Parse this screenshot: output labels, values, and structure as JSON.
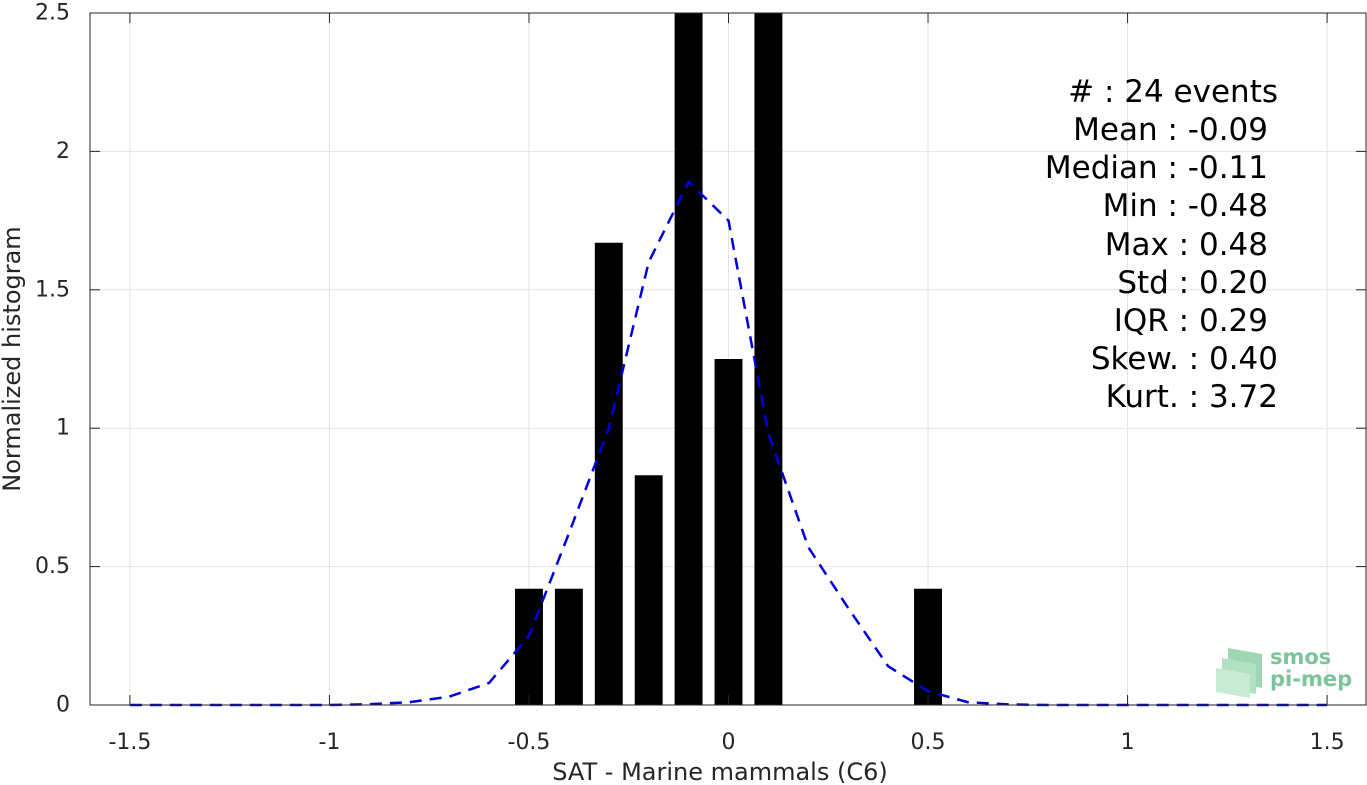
{
  "chart_data": {
    "type": "bar",
    "xlabel": "SAT - Marine mammals (C6)",
    "ylabel": "Normalized histogram",
    "xlim": [
      -1.6,
      1.6
    ],
    "ylim": [
      0,
      2.5
    ],
    "grid": true,
    "x_ticks": [
      -1.5,
      -1,
      -0.5,
      0,
      0.5,
      1,
      1.5
    ],
    "x_tick_labels": [
      "-1.5",
      "-1",
      "-0.5",
      "0",
      "0.5",
      "1",
      "1.5"
    ],
    "y_ticks": [
      0,
      0.5,
      1,
      1.5,
      2,
      2.5
    ],
    "y_tick_labels": [
      "0",
      "0.5",
      "1",
      "1.5",
      "2",
      "2.5"
    ],
    "bin_width": 0.07,
    "histogram": {
      "x": [
        -0.5,
        -0.4,
        -0.3,
        -0.2,
        -0.1,
        0.0,
        0.1,
        0.5
      ],
      "values": [
        0.42,
        0.42,
        1.67,
        0.83,
        2.5,
        1.25,
        2.5,
        0.42
      ],
      "color": "#000000"
    },
    "fit_curve": {
      "style": "dashed",
      "color": "#0000dd",
      "x": [
        -1.5,
        -1.4,
        -1.3,
        -1.2,
        -1.1,
        -1.0,
        -0.9,
        -0.8,
        -0.7,
        -0.6,
        -0.5,
        -0.4,
        -0.3,
        -0.2,
        -0.1,
        0.0,
        0.1,
        0.2,
        0.3,
        0.4,
        0.5,
        0.6,
        0.7,
        0.8,
        0.9,
        1.0,
        1.1,
        1.2,
        1.3,
        1.4,
        1.5
      ],
      "y": [
        0,
        0,
        0,
        0,
        0,
        0,
        0.003,
        0.01,
        0.03,
        0.08,
        0.25,
        0.62,
        1.0,
        1.6,
        1.89,
        1.75,
        0.98,
        0.57,
        0.35,
        0.14,
        0.05,
        0.01,
        0.002,
        0,
        0,
        0,
        0,
        0,
        0,
        0,
        0
      ]
    },
    "annotations": [
      "#  : 24 events",
      "Mean : -0.09",
      "Median : -0.11",
      "Min : -0.48",
      "Max : 0.48",
      "Std : 0.20",
      "IQR : 0.29",
      "Skew. : 0.40",
      "Kurt. : 3.72"
    ]
  },
  "logo": {
    "line1": "smos",
    "line2": "pi-mep",
    "color": "#7dc49a"
  }
}
